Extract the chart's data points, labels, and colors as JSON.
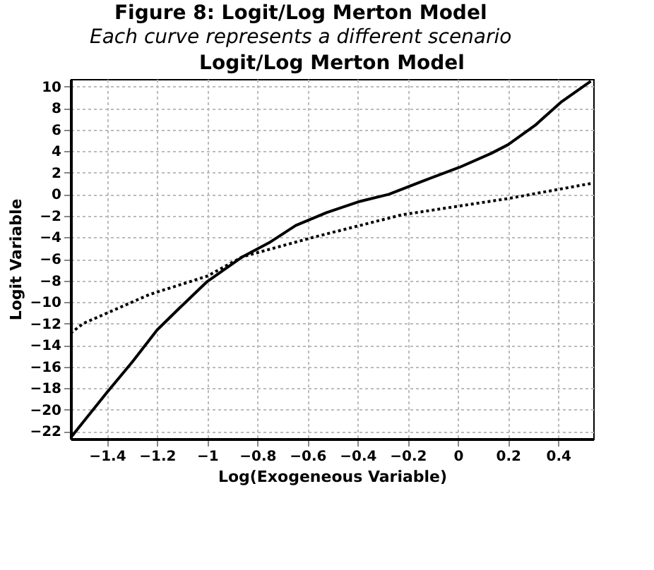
{
  "chart_data": {
    "type": "line",
    "title": "Figure 8: Logit/Log Merton Model",
    "subtitle": "Each curve represents a different scenario",
    "annotations": [
      "Logit/Log Merton Model"
    ],
    "xlabel": "Log(Exogeneous Variable)",
    "ylabel": "Logit Variable",
    "series": [
      {
        "color": "#000000",
        "line_style": "solid",
        "x": [
          -1.545,
          -1.4,
          -1.3,
          -1.2,
          -1.108,
          -1.0,
          -0.859,
          -0.753,
          -0.647,
          -0.524,
          -0.397,
          -0.275,
          -0.132,
          0.006,
          0.133,
          0.2,
          0.308,
          0.414,
          0.53
        ],
        "values": [
          -22.6,
          -18.4,
          -15.6,
          -12.6,
          -10.5,
          -8.1,
          -5.8,
          -4.5,
          -2.9,
          -1.7,
          -0.7,
          0,
          1.3,
          2.5,
          3.8,
          4.6,
          6.4,
          8.6,
          10.5
        ]
      },
      {
        "color": "#000000",
        "line_style": "dotted",
        "x": [
          -1.545,
          -1.495,
          -1.23,
          -1.0,
          -0.859,
          -0.578,
          -0.222,
          0.2,
          0.53
        ],
        "values": [
          -12.9,
          -12.0,
          -9.3,
          -7.6,
          -5.8,
          -4.0,
          -1.9,
          -0.4,
          1.0
        ]
      }
    ],
    "xlim": [
      -1.545,
      0.54
    ],
    "xticks": [
      -1.4,
      -1.2,
      -1,
      -0.8,
      -0.6,
      -0.4,
      -0.2,
      0,
      0.2,
      0.4
    ],
    "ylim": [
      -22.7,
      10.7
    ],
    "yticks": [
      -22,
      -20,
      -18,
      -16,
      -14,
      -12,
      -10,
      -8,
      -6,
      -4,
      -2,
      0,
      2,
      4,
      6,
      8,
      10
    ],
    "grid": true,
    "marker": "none"
  }
}
